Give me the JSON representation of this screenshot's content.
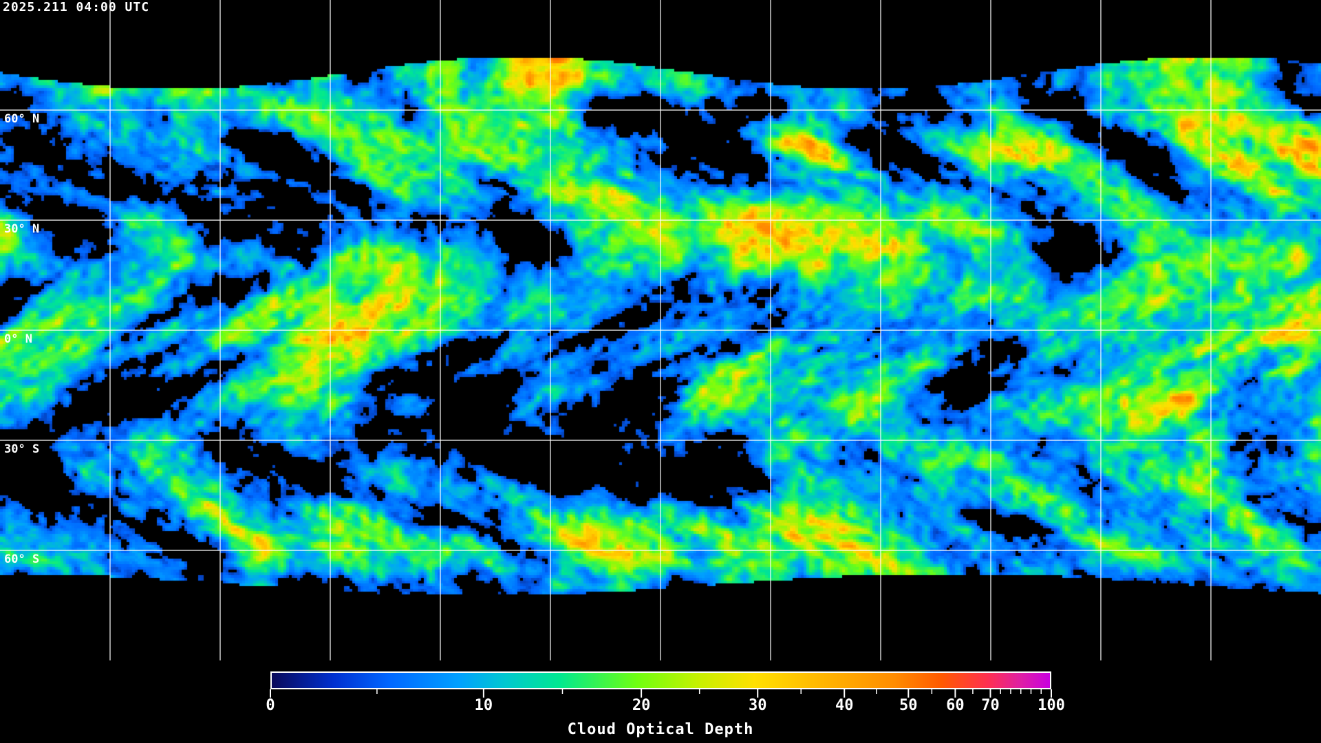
{
  "timestamp": "2025.211 04:00 UTC",
  "latitude_labels": [
    "60° N",
    "30° N",
    "0° N",
    "30° S",
    "60° S"
  ],
  "colorbar": {
    "title": "Cloud Optical Depth",
    "range": [
      0,
      100
    ],
    "major_ticks": [
      "0",
      "10",
      "20",
      "30",
      "40",
      "50",
      "60",
      "70",
      "100"
    ],
    "minor_ticks": [
      5,
      15,
      25,
      35,
      45,
      55,
      65,
      75,
      80,
      85,
      90,
      95
    ],
    "colors": [
      "#0a0a5a",
      "#0066ff",
      "#00a0ff",
      "#00e890",
      "#70ff10",
      "#ffe000",
      "#ff8c00",
      "#ff5a00",
      "#ff3050",
      "#c800e0"
    ]
  },
  "map": {
    "projection": "equirectangular",
    "gridline_spacing_degrees": 30,
    "background": "#000000",
    "grid_color": "#ffffff"
  }
}
